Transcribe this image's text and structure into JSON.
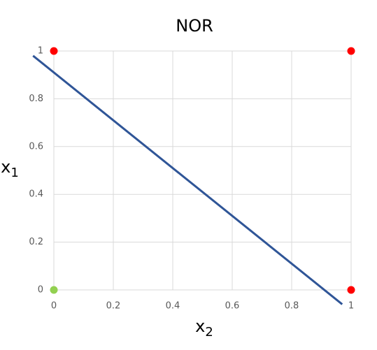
{
  "chart_data": {
    "type": "scatter",
    "title": "NOR",
    "xlabel": {
      "text": "x",
      "sub": "2"
    },
    "ylabel": {
      "text": "x",
      "sub": "1"
    },
    "series": [
      {
        "type": "scatter",
        "x": [
          0,
          1,
          1,
          0
        ],
        "values": [
          1,
          1,
          0,
          0
        ],
        "colors": [
          "#ff0000",
          "#ff0000",
          "#ff0000",
          "#92d050"
        ]
      },
      {
        "type": "line",
        "x": [
          -0.07,
          0.97
        ],
        "values": [
          0.98,
          -0.06
        ],
        "color": "#2f5597"
      }
    ],
    "xlim": [
      0,
      1
    ],
    "ylim": [
      0,
      1
    ],
    "xticks": [
      0,
      0.2,
      0.4,
      0.6,
      0.8,
      1
    ],
    "yticks": [
      0,
      0.2,
      0.4,
      0.6,
      0.8,
      1
    ],
    "grid": true
  }
}
